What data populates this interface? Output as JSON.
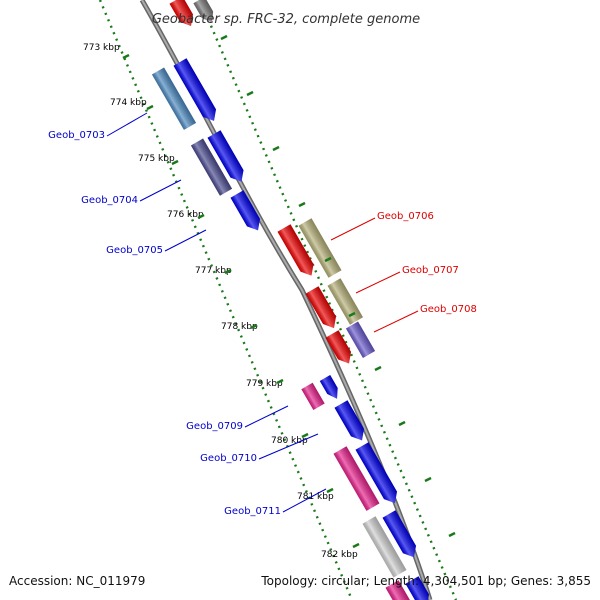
{
  "header": {
    "title": "Geobacter sp. FRC-32, complete genome"
  },
  "footer": {
    "accession": "Accession: NC_011979",
    "topology": "Topology: circular; Length: 4,304,501 bp; Genes: 3,855"
  },
  "ticks": [
    "773 kbp",
    "774 kbp",
    "775 kbp",
    "776 kbp",
    "777 kbp",
    "778 kbp",
    "779 kbp",
    "780 kbp",
    "781 kbp",
    "782 kbp"
  ],
  "gene_labels": [
    "Geob_0703",
    "Geob_0704",
    "Geob_0705",
    "Geob_0706",
    "Geob_0707",
    "Geob_0708",
    "Geob_0709",
    "Geob_0710",
    "Geob_0711"
  ],
  "colors": {
    "backbone": "#7f7f7f",
    "tick_dots": "#1a7a1a",
    "forward_label": "#0000cc",
    "reverse_label": "#dd0000",
    "gene_blue": "#0000ee",
    "gene_red": "#ee0000",
    "gene_olive": "#b5b078",
    "gene_magenta": "#e8208c",
    "gene_steel": "#4a88c0",
    "gene_slate": "#4a4a90",
    "gene_violet": "#6a5acd",
    "gene_gray": "#cfcfcf"
  }
}
